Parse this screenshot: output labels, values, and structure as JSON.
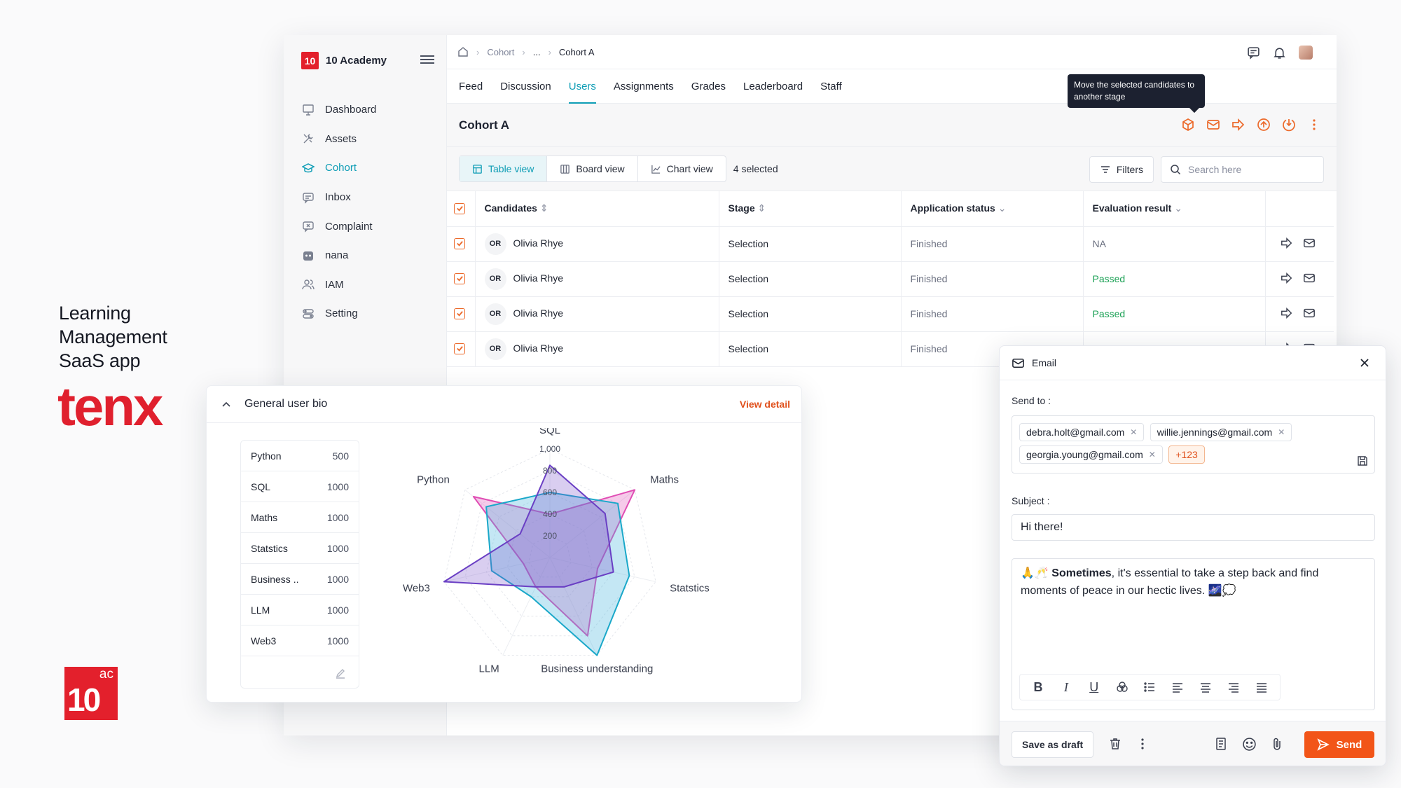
{
  "brand": {
    "title_lines": [
      "Learning",
      "Management",
      "SaaS app"
    ],
    "wordmark": "tenx",
    "logo_big": "10",
    "logo_small": "ac"
  },
  "sidebar": {
    "logo_text": "10",
    "app_name": "10 Academy",
    "items": [
      {
        "label": "Dashboard",
        "icon": "dashboard-icon"
      },
      {
        "label": "Assets",
        "icon": "tools-icon"
      },
      {
        "label": "Cohort",
        "icon": "cohort-icon"
      },
      {
        "label": "Inbox",
        "icon": "inbox-icon"
      },
      {
        "label": "Complaint",
        "icon": "complaint-icon"
      },
      {
        "label": "nana",
        "icon": "bot-icon"
      },
      {
        "label": "IAM",
        "icon": "users-icon"
      },
      {
        "label": "Setting",
        "icon": "setting-icon"
      }
    ],
    "active_index": 2
  },
  "breadcrumb": {
    "items": [
      "Cohort",
      "...",
      "Cohort A"
    ]
  },
  "tabs": {
    "items": [
      "Feed",
      "Discussion",
      "Users",
      "Assignments",
      "Grades",
      "Leaderboard",
      "Staff"
    ],
    "active_index": 2
  },
  "tooltip": "Move the selected candidates to another stage",
  "cohort": {
    "title": "Cohort A"
  },
  "views": {
    "table": "Table view",
    "board": "Board view",
    "chart": "Chart view",
    "selected": "4 selected",
    "filters": "Filters",
    "search_placeholder": "Search here"
  },
  "table": {
    "headers": [
      "Candidates",
      "Stage",
      "Application status",
      "Evaluation result"
    ],
    "rows": [
      {
        "initials": "OR",
        "name": "Olivia Rhye",
        "stage": "Selection",
        "status": "Finished",
        "result": "NA"
      },
      {
        "initials": "OR",
        "name": "Olivia Rhye",
        "stage": "Selection",
        "status": "Finished",
        "result": "Passed"
      },
      {
        "initials": "OR",
        "name": "Olivia Rhye",
        "stage": "Selection",
        "status": "Finished",
        "result": "Passed"
      },
      {
        "initials": "OR",
        "name": "Olivia Rhye",
        "stage": "Selection",
        "status": "Finished",
        "result": ""
      }
    ]
  },
  "bio": {
    "title": "General user bio",
    "view_detail": "View detail",
    "skills": [
      {
        "name": "Python",
        "value": "500"
      },
      {
        "name": "SQL",
        "value": "1000"
      },
      {
        "name": "Maths",
        "value": "1000"
      },
      {
        "name": "Statstics",
        "value": "1000"
      },
      {
        "name": "Business ..",
        "value": "1000"
      },
      {
        "name": "LLM",
        "value": "1000"
      },
      {
        "name": "Web3",
        "value": "1000"
      }
    ]
  },
  "chart_data": {
    "type": "radar",
    "axes": [
      "SQL",
      "Maths",
      "Statstics",
      "Business understanding",
      "LLM",
      "Web3",
      "Python"
    ],
    "ticks": [
      "200",
      "400",
      "600",
      "800",
      "1,000"
    ],
    "rmax": 1000,
    "series": [
      {
        "color": "#e04db4",
        "fill": "rgba(226,90,190,0.32)",
        "values": [
          400,
          1000,
          450,
          800,
          300,
          250,
          900
        ]
      },
      {
        "color": "#1aa8c9",
        "fill": "rgba(70,180,220,0.32)",
        "values": [
          600,
          800,
          750,
          1000,
          400,
          550,
          750
        ]
      },
      {
        "color": "#6a3fc4",
        "fill": "rgba(120,80,200,0.28)",
        "values": [
          850,
          650,
          600,
          300,
          300,
          1000,
          350
        ]
      }
    ]
  },
  "email": {
    "title": "Email",
    "send_to_label": "Send to :",
    "recipients": [
      "debra.holt@gmail.com",
      "willie.jennings@gmail.com",
      "georgia.young@gmail.com"
    ],
    "more": "+123",
    "subject_label": "Subject :",
    "subject": "Hi there!",
    "body_emoji_lead": "🙏🥂",
    "body_bold": "Sometimes",
    "body_rest": ", it's essential to take a step back and find moments of peace in our hectic lives. 🌌💭",
    "save_draft": "Save as draft",
    "send": "Send"
  },
  "colors": {
    "accent": "#0e9db5",
    "brand": "#e3202c",
    "action": "#f25518",
    "pass": "#1aa054"
  }
}
